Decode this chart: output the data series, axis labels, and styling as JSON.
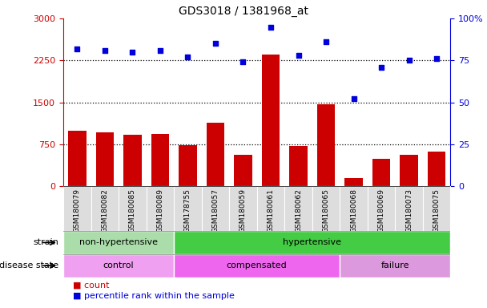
{
  "title": "GDS3018 / 1381968_at",
  "samples": [
    "GSM180079",
    "GSM180082",
    "GSM180085",
    "GSM180089",
    "GSM178755",
    "GSM180057",
    "GSM180059",
    "GSM180061",
    "GSM180062",
    "GSM180065",
    "GSM180068",
    "GSM180069",
    "GSM180073",
    "GSM180075"
  ],
  "counts": [
    1000,
    960,
    920,
    930,
    730,
    1130,
    570,
    2350,
    720,
    1460,
    155,
    490,
    560,
    620
  ],
  "percentiles": [
    82,
    81,
    80,
    81,
    77,
    85,
    74,
    95,
    78,
    86,
    52,
    71,
    75,
    76
  ],
  "strain_groups": [
    {
      "label": "non-hypertensive",
      "start": 0,
      "end": 4,
      "color": "#AADDAA"
    },
    {
      "label": "hypertensive",
      "start": 4,
      "end": 14,
      "color": "#44CC44"
    }
  ],
  "disease_groups": [
    {
      "label": "control",
      "start": 0,
      "end": 4,
      "color": "#F0A0F0"
    },
    {
      "label": "compensated",
      "start": 4,
      "end": 10,
      "color": "#EE66EE"
    },
    {
      "label": "failure",
      "start": 10,
      "end": 14,
      "color": "#DD99DD"
    }
  ],
  "bar_color": "#CC0000",
  "dot_color": "#0000DD",
  "left_ylim": [
    0,
    3000
  ],
  "right_ylim": [
    0,
    100
  ],
  "left_yticks": [
    0,
    750,
    1500,
    2250,
    3000
  ],
  "right_yticks": [
    0,
    25,
    50,
    75,
    100
  ],
  "right_yticklabels": [
    "0",
    "25",
    "50",
    "75",
    "100%"
  ],
  "dotted_lines": [
    750,
    1500,
    2250
  ],
  "plot_bg": "#FFFFFF",
  "tick_area_bg": "#DDDDDD"
}
